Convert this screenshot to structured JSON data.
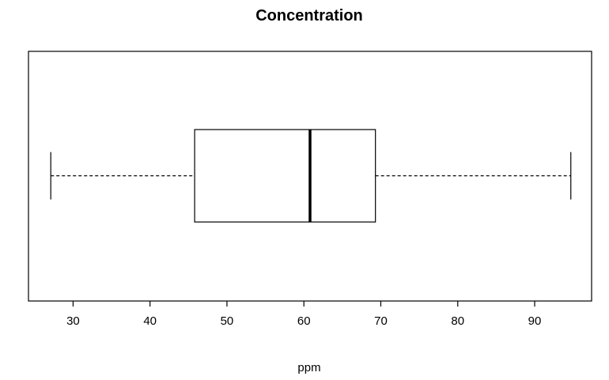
{
  "chart_data": {
    "type": "boxplot",
    "orientation": "horizontal",
    "title": "Concentration",
    "xlabel": "ppm",
    "ylabel": "",
    "xlim": [
      24.2,
      97.4
    ],
    "x_ticks": [
      30,
      40,
      50,
      60,
      70,
      80,
      90
    ],
    "x_tick_labels": [
      "30",
      "40",
      "50",
      "60",
      "70",
      "80",
      "90"
    ],
    "stats": {
      "min": 27.1,
      "q1": 45.8,
      "median": 60.8,
      "q3": 69.3,
      "max": 94.7
    },
    "whisker_style": "dashed",
    "grid": false,
    "legend": "none",
    "colors": {
      "stroke": "#000000",
      "fill": "#ffffff"
    }
  }
}
